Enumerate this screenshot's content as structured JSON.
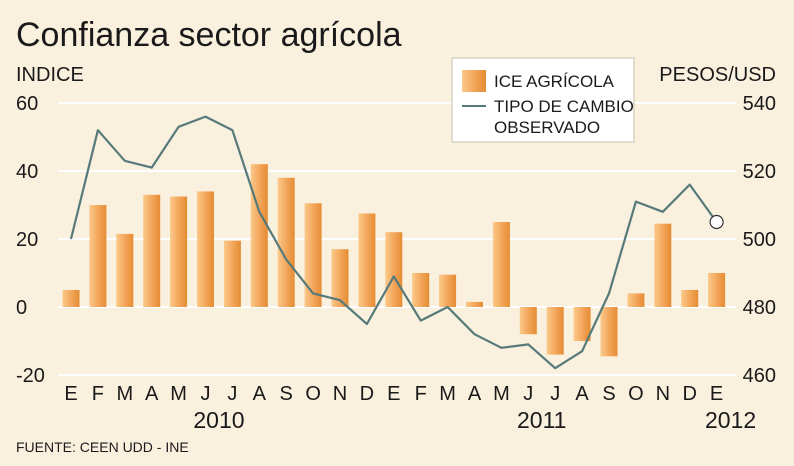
{
  "colors": {
    "background": "#faf0de",
    "bar_light": "#fbc98a",
    "bar_dark": "#e58c33",
    "line": "#567a7a",
    "grid": "#ffffff",
    "text": "#1a1a1a"
  },
  "chart_data": {
    "type": "bar+line",
    "title": "Confianza sector agrícola",
    "left_axis": {
      "label": "INDICE",
      "ticks": [
        "60",
        "40",
        "20",
        "0",
        "-20"
      ],
      "range": [
        -20,
        60
      ]
    },
    "right_axis": {
      "label": "PESOS/USD",
      "ticks": [
        "540",
        "520",
        "500",
        "480",
        "460"
      ],
      "range": [
        460,
        540
      ]
    },
    "categories": [
      "E",
      "F",
      "M",
      "A",
      "M",
      "J",
      "J",
      "A",
      "S",
      "O",
      "N",
      "D",
      "E",
      "F",
      "M",
      "A",
      "M",
      "J",
      "J",
      "A",
      "S",
      "O",
      "N",
      "D",
      "E"
    ],
    "years": [
      {
        "label": "2010",
        "start": 0,
        "end": 11
      },
      {
        "label": "2011",
        "start": 12,
        "end": 23
      },
      {
        "label": "2012",
        "start": 24,
        "end": 24
      }
    ],
    "series": [
      {
        "name": "ICE AGRÍCOLA",
        "type": "bar",
        "axis": "left",
        "values": [
          5,
          30,
          21.5,
          33,
          32.5,
          34,
          19.5,
          42,
          38,
          30.5,
          17,
          27.5,
          22,
          10,
          9.5,
          1.5,
          25,
          -8,
          -14,
          -10,
          -14.5,
          4,
          24.5,
          5,
          10
        ]
      },
      {
        "name": "TIPO DE CAMBIO OBSERVADO",
        "name_lines": [
          "TIPO DE CAMBIO",
          "OBSERVADO"
        ],
        "type": "line",
        "axis": "right",
        "values": [
          500,
          532,
          523,
          521,
          533,
          536,
          532,
          508,
          494,
          484,
          482,
          475,
          489,
          476,
          480,
          472,
          468,
          469,
          462,
          467,
          484,
          511,
          508,
          516,
          505
        ]
      }
    ],
    "grid": "horizontal",
    "legend": "top-right",
    "source": "FUENTE: CEEN UDD - INE"
  }
}
